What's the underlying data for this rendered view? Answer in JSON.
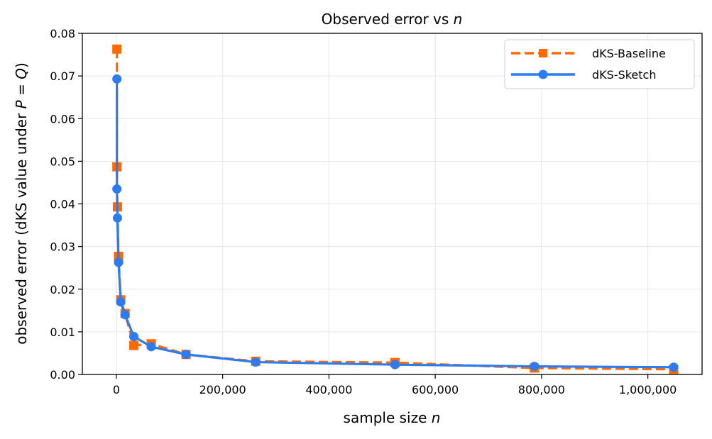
{
  "chart_data": {
    "type": "line",
    "title": "Observed error vs",
    "title_var": "n",
    "xlabel": "sample size",
    "xlabel_var": "n",
    "ylabel_prefix": "observed error  (dKS value under ",
    "ylabel_math": "P = Q",
    "ylabel_suffix": ")",
    "xlim": [
      -64000,
      1102000
    ],
    "ylim": [
      0,
      0.08
    ],
    "xticks": [
      0,
      200000,
      400000,
      600000,
      800000,
      1000000
    ],
    "xtick_labels": [
      "0",
      "200,000",
      "400,000",
      "600,000",
      "800,000",
      "1,000,000"
    ],
    "yticks": [
      0,
      0.01,
      0.02,
      0.03,
      0.04,
      0.05,
      0.06,
      0.07,
      0.08
    ],
    "ytick_labels": [
      "0.00",
      "0.01",
      "0.02",
      "0.03",
      "0.04",
      "0.05",
      "0.06",
      "0.07",
      "0.08"
    ],
    "grid": true,
    "legend_position": "top-right",
    "series": [
      {
        "name": "dKS-Baseline",
        "color": "#ff6a00",
        "style": "dashed",
        "marker": "square",
        "points": [
          [
            1000,
            0.0763
          ],
          [
            1024,
            0.0487
          ],
          [
            2048,
            0.0393
          ],
          [
            4096,
            0.0277
          ],
          [
            8192,
            0.0175
          ],
          [
            16384,
            0.0143
          ],
          [
            32768,
            0.0068
          ],
          [
            65536,
            0.0072
          ],
          [
            131072,
            0.0047
          ],
          [
            262144,
            0.0031
          ],
          [
            524288,
            0.0028
          ],
          [
            786432,
            0.0015
          ],
          [
            1048576,
            0.0012
          ]
        ]
      },
      {
        "name": "dKS-Sketch",
        "color": "#2c7bf2",
        "style": "solid",
        "marker": "circle",
        "points": [
          [
            1000,
            0.0693
          ],
          [
            1024,
            0.0435
          ],
          [
            2048,
            0.0367
          ],
          [
            4096,
            0.0263
          ],
          [
            8192,
            0.017
          ],
          [
            16384,
            0.014
          ],
          [
            32768,
            0.0089
          ],
          [
            65536,
            0.0065
          ],
          [
            131072,
            0.0047
          ],
          [
            262144,
            0.0029
          ],
          [
            524288,
            0.0023
          ],
          [
            786432,
            0.0019
          ],
          [
            1048576,
            0.0017
          ]
        ]
      }
    ]
  }
}
